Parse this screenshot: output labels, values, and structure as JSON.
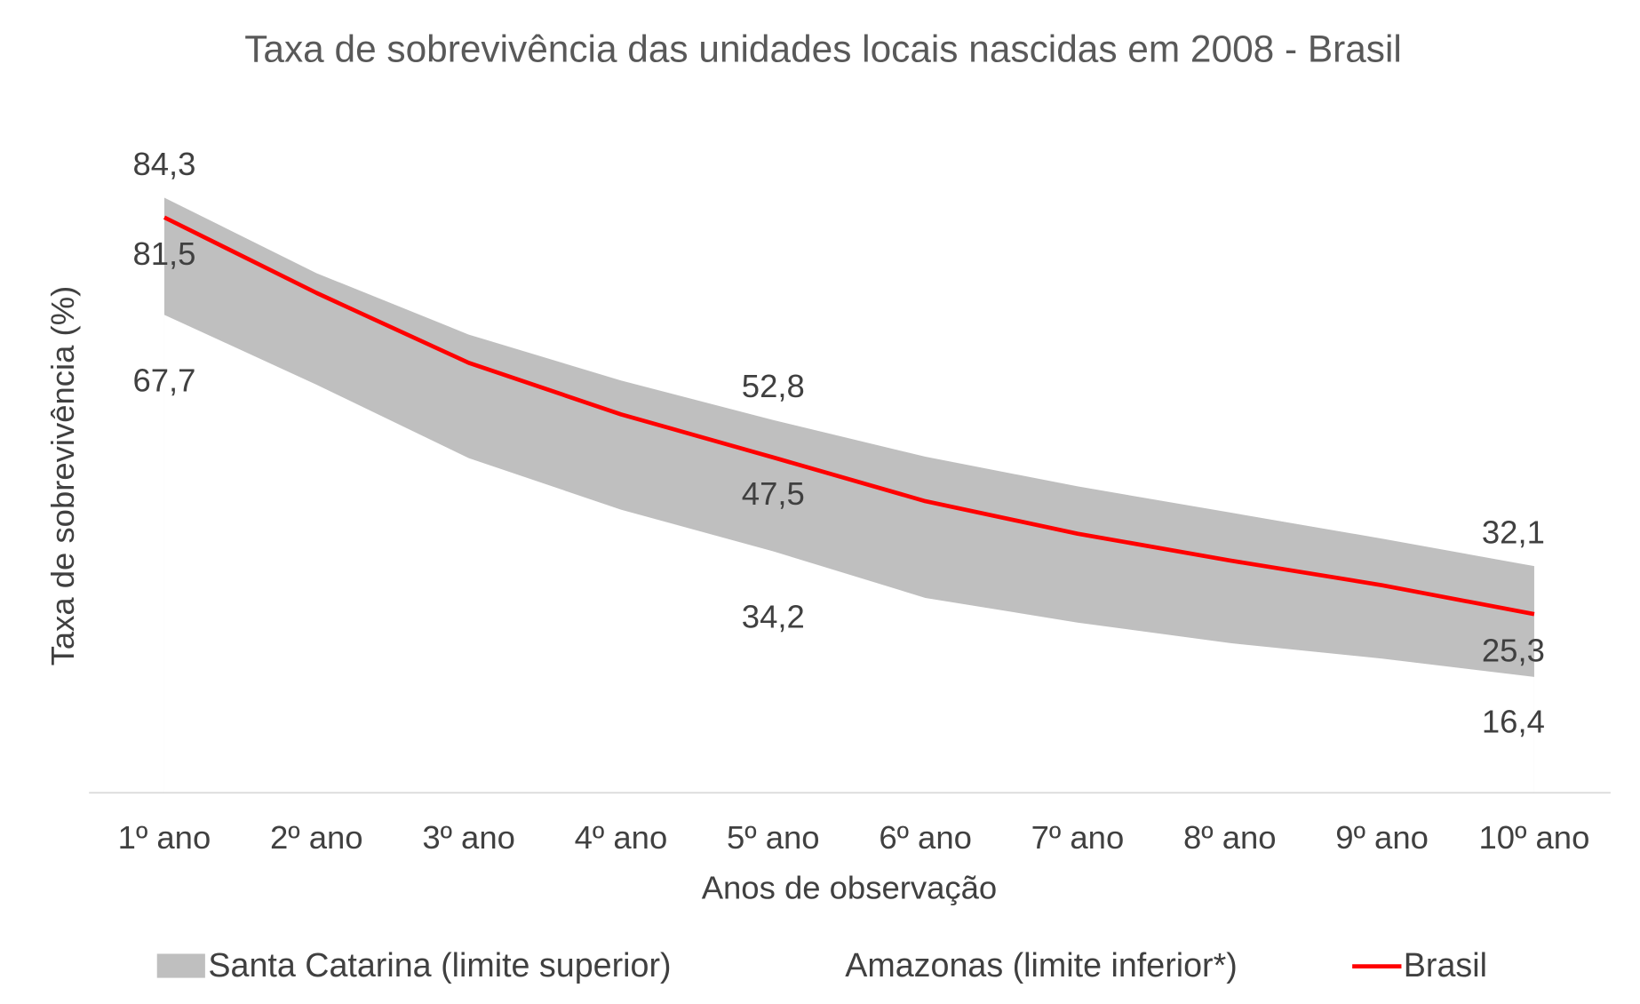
{
  "chart_data": {
    "type": "band",
    "title": "Taxa de sobrevivência das unidades locais nascidas em 2008 - Brasil",
    "xlabel": "Anos de observação",
    "ylabel": "Taxa de sobrevivência (%)",
    "categories": [
      "1º ano",
      "2º ano",
      "3º ano",
      "4º ano",
      "5º ano",
      "6º ano",
      "7º ano",
      "8º ano",
      "9º ano",
      "10º ano"
    ],
    "ylim": [
      0,
      90
    ],
    "series": [
      {
        "name": "Santa Catarina (limite superior)",
        "color": "#bfbfbf",
        "role": "upper",
        "values": [
          84.3,
          73.6,
          64.9,
          58.4,
          52.8,
          47.6,
          43.4,
          39.7,
          36.0,
          32.1
        ],
        "value_labels": [
          "84,3",
          null,
          null,
          null,
          "52,8",
          null,
          null,
          null,
          null,
          "32,1"
        ]
      },
      {
        "name": "Amazonas (limite inferior*)",
        "color": "#ffffff",
        "role": "lower",
        "values": [
          67.7,
          57.8,
          47.4,
          40.1,
          34.2,
          27.6,
          24.1,
          21.2,
          19.0,
          16.4
        ],
        "value_labels": [
          "67,7",
          null,
          null,
          null,
          "34,2",
          null,
          null,
          null,
          null,
          "16,4"
        ]
      },
      {
        "name": "Brasil",
        "color": "#ff0000",
        "role": "line",
        "values": [
          81.5,
          70.8,
          60.9,
          53.6,
          47.5,
          41.3,
          36.7,
          32.9,
          29.4,
          25.3
        ],
        "value_labels": [
          "81,5",
          null,
          null,
          null,
          "47,5",
          null,
          null,
          null,
          null,
          "25,3"
        ]
      }
    ]
  }
}
